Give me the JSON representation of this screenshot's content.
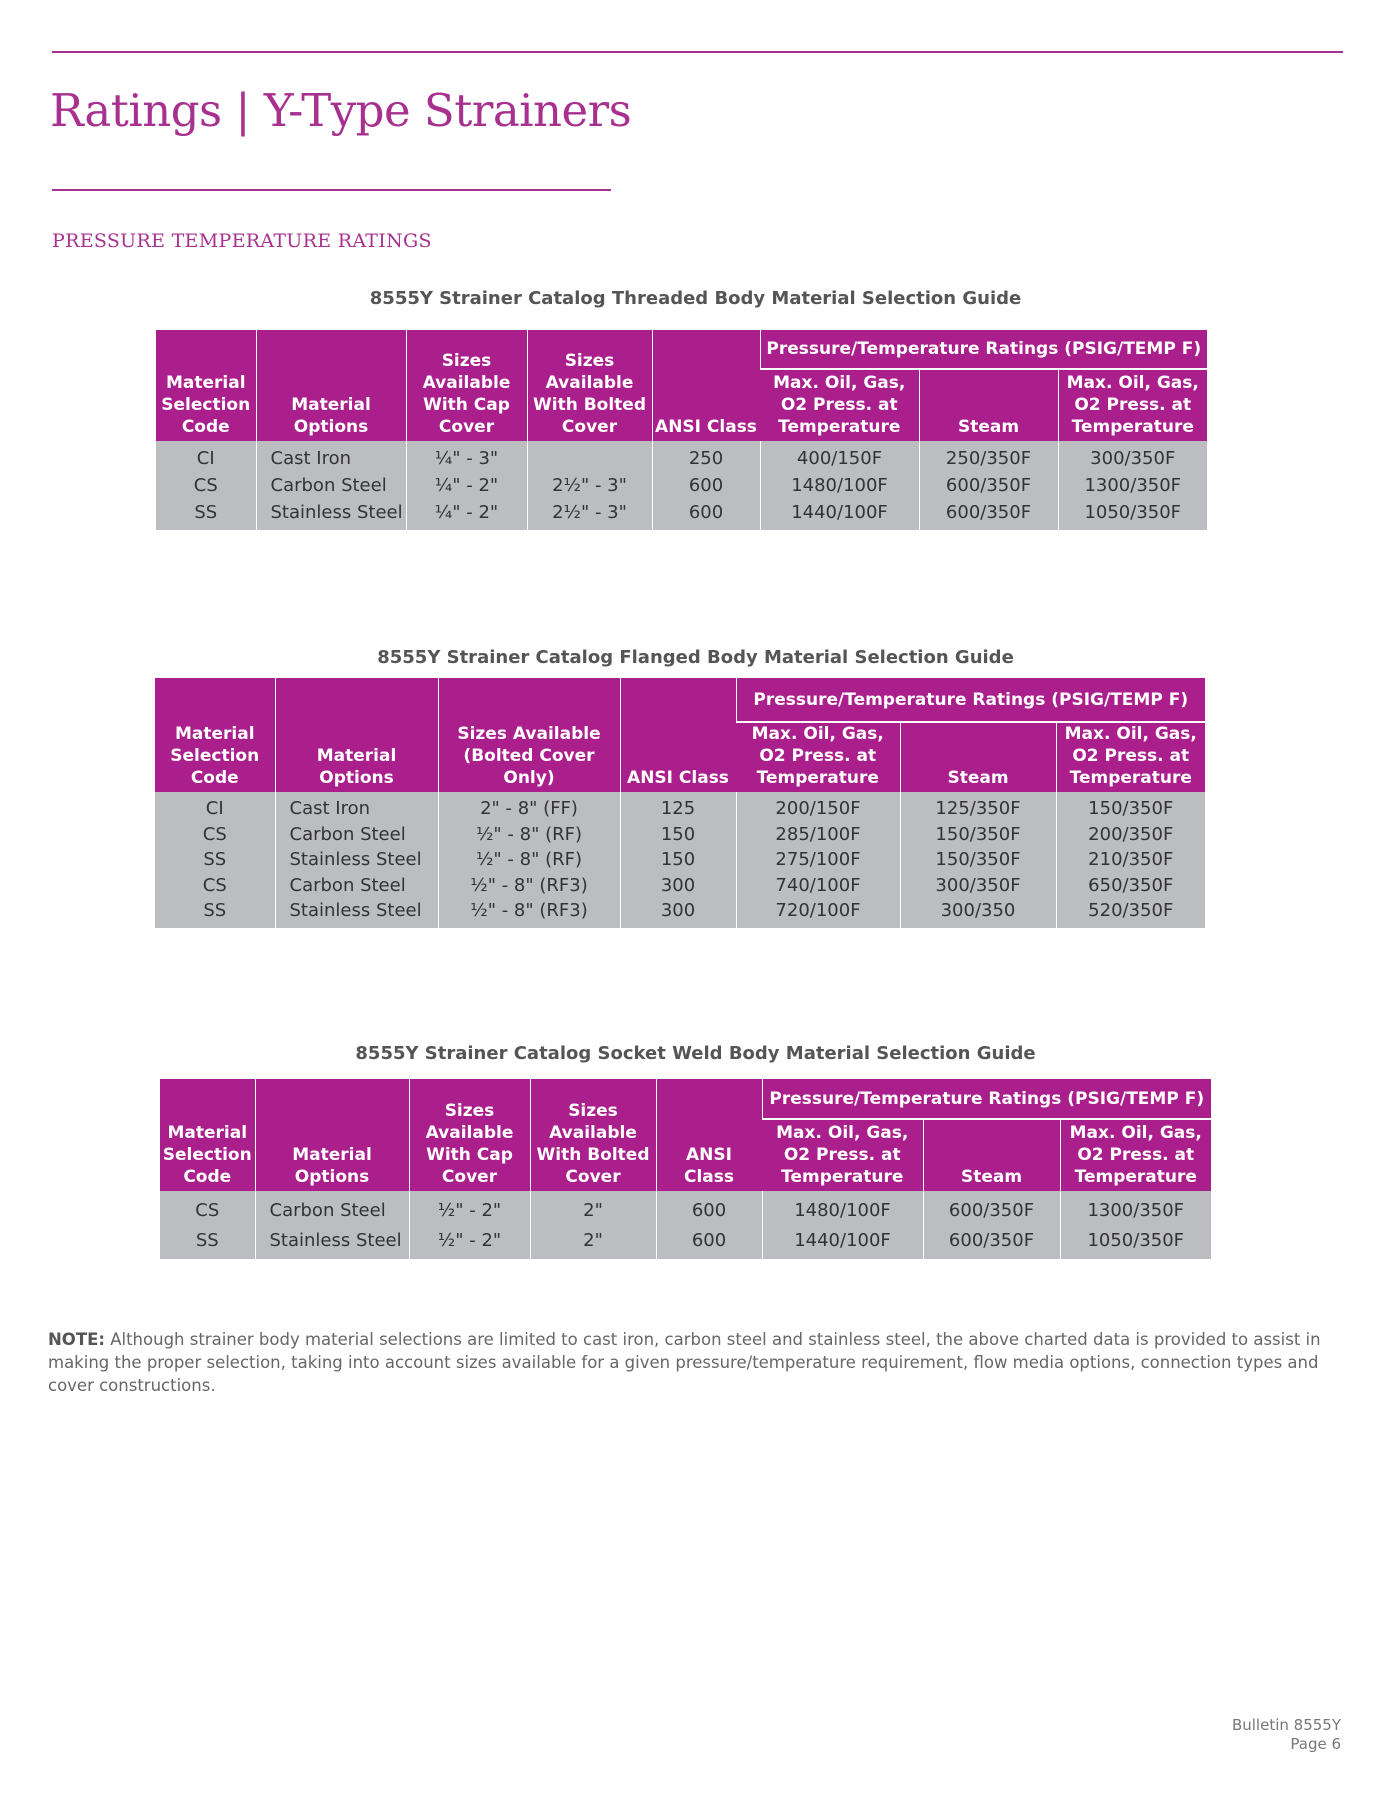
{
  "colors": {
    "accent": "#ab1f8c",
    "row_fill": "#bcbdc0",
    "title": "#a8318f"
  },
  "page_title": "Ratings | Y-Type Strainers",
  "section_heading": "PRESSURE TEMPERATURE RATINGS",
  "tables": [
    {
      "caption": "8555Y Strainer Catalog Threaded Body Material Selection Guide",
      "group_header": "Pressure/Temperature Ratings (PSIG/TEMP F)",
      "headers": [
        "Material Selection Code",
        "Material Options",
        "Sizes Available With Cap Cover",
        "Sizes Available With Bolted Cover",
        "ANSI Class",
        "Max. Oil, Gas, O2 Press. at Temperature",
        "Steam",
        "Max. Oil, Gas, O2 Press. at Temperature"
      ],
      "rows": [
        [
          "CI",
          "Cast Iron",
          "¼\" - 3\"",
          "",
          "250",
          "400/150F",
          "250/350F",
          "300/350F"
        ],
        [
          "CS",
          "Carbon Steel",
          "¼\" - 2\"",
          "2½\" - 3\"",
          "600",
          "1480/100F",
          "600/350F",
          "1300/350F"
        ],
        [
          "SS",
          "Stainless Steel",
          "¼\" - 2\"",
          "2½\" - 3\"",
          "600",
          "1440/100F",
          "600/350F",
          "1050/350F"
        ]
      ]
    },
    {
      "caption": "8555Y Strainer Catalog Flanged Body Material Selection Guide",
      "group_header": "Pressure/Temperature Ratings (PSIG/TEMP F)",
      "headers": [
        "Material Selection Code",
        "Material Options",
        "Sizes Available (Bolted Cover Only)",
        "ANSI Class",
        "Max. Oil, Gas, O2 Press. at Temperature",
        "Steam",
        "Max. Oil, Gas, O2 Press. at Temperature"
      ],
      "rows": [
        [
          "CI",
          "Cast Iron",
          "2\" - 8\" (FF)",
          "125",
          "200/150F",
          "125/350F",
          "150/350F"
        ],
        [
          "CS",
          "Carbon Steel",
          "½\" - 8\" (RF)",
          "150",
          "285/100F",
          "150/350F",
          "200/350F"
        ],
        [
          "SS",
          "Stainless Steel",
          "½\" - 8\" (RF)",
          "150",
          "275/100F",
          "150/350F",
          "210/350F"
        ],
        [
          "CS",
          "Carbon Steel",
          "½\" - 8\" (RF3)",
          "300",
          "740/100F",
          "300/350F",
          "650/350F"
        ],
        [
          "SS",
          "Stainless Steel",
          "½\" - 8\" (RF3)",
          "300",
          "720/100F",
          "300/350",
          "520/350F"
        ]
      ]
    },
    {
      "caption": "8555Y Strainer Catalog Socket Weld Body Material Selection Guide",
      "group_header": "Pressure/Temperature Ratings (PSIG/TEMP F)",
      "headers": [
        "Material Selection Code",
        "Material Options",
        "Sizes Available With Cap Cover",
        "Sizes Available With Bolted Cover",
        "ANSI Class",
        "Max. Oil, Gas, O2 Press. at Temperature",
        "Steam",
        "Max. Oil, Gas, O2 Press. at Temperature"
      ],
      "rows": [
        [
          "CS",
          "Carbon Steel",
          "½\" - 2\"",
          "2\"",
          "600",
          "1480/100F",
          "600/350F",
          "1300/350F"
        ],
        [
          "SS",
          "Stainless Steel",
          "½\" - 2\"",
          "2\"",
          "600",
          "1440/100F",
          "600/350F",
          "1050/350F"
        ]
      ]
    }
  ],
  "note": {
    "label": "NOTE:",
    "text": " Although strainer body material selections are limited to cast iron, carbon steel and stainless steel, the above charted data is provided to assist in making the proper selection, taking into account sizes available for a given pressure/temperature requirement, flow media options, connection types and cover constructions."
  },
  "footer": {
    "bulletin": "Bulletin 8555Y",
    "page": "Page 6"
  }
}
